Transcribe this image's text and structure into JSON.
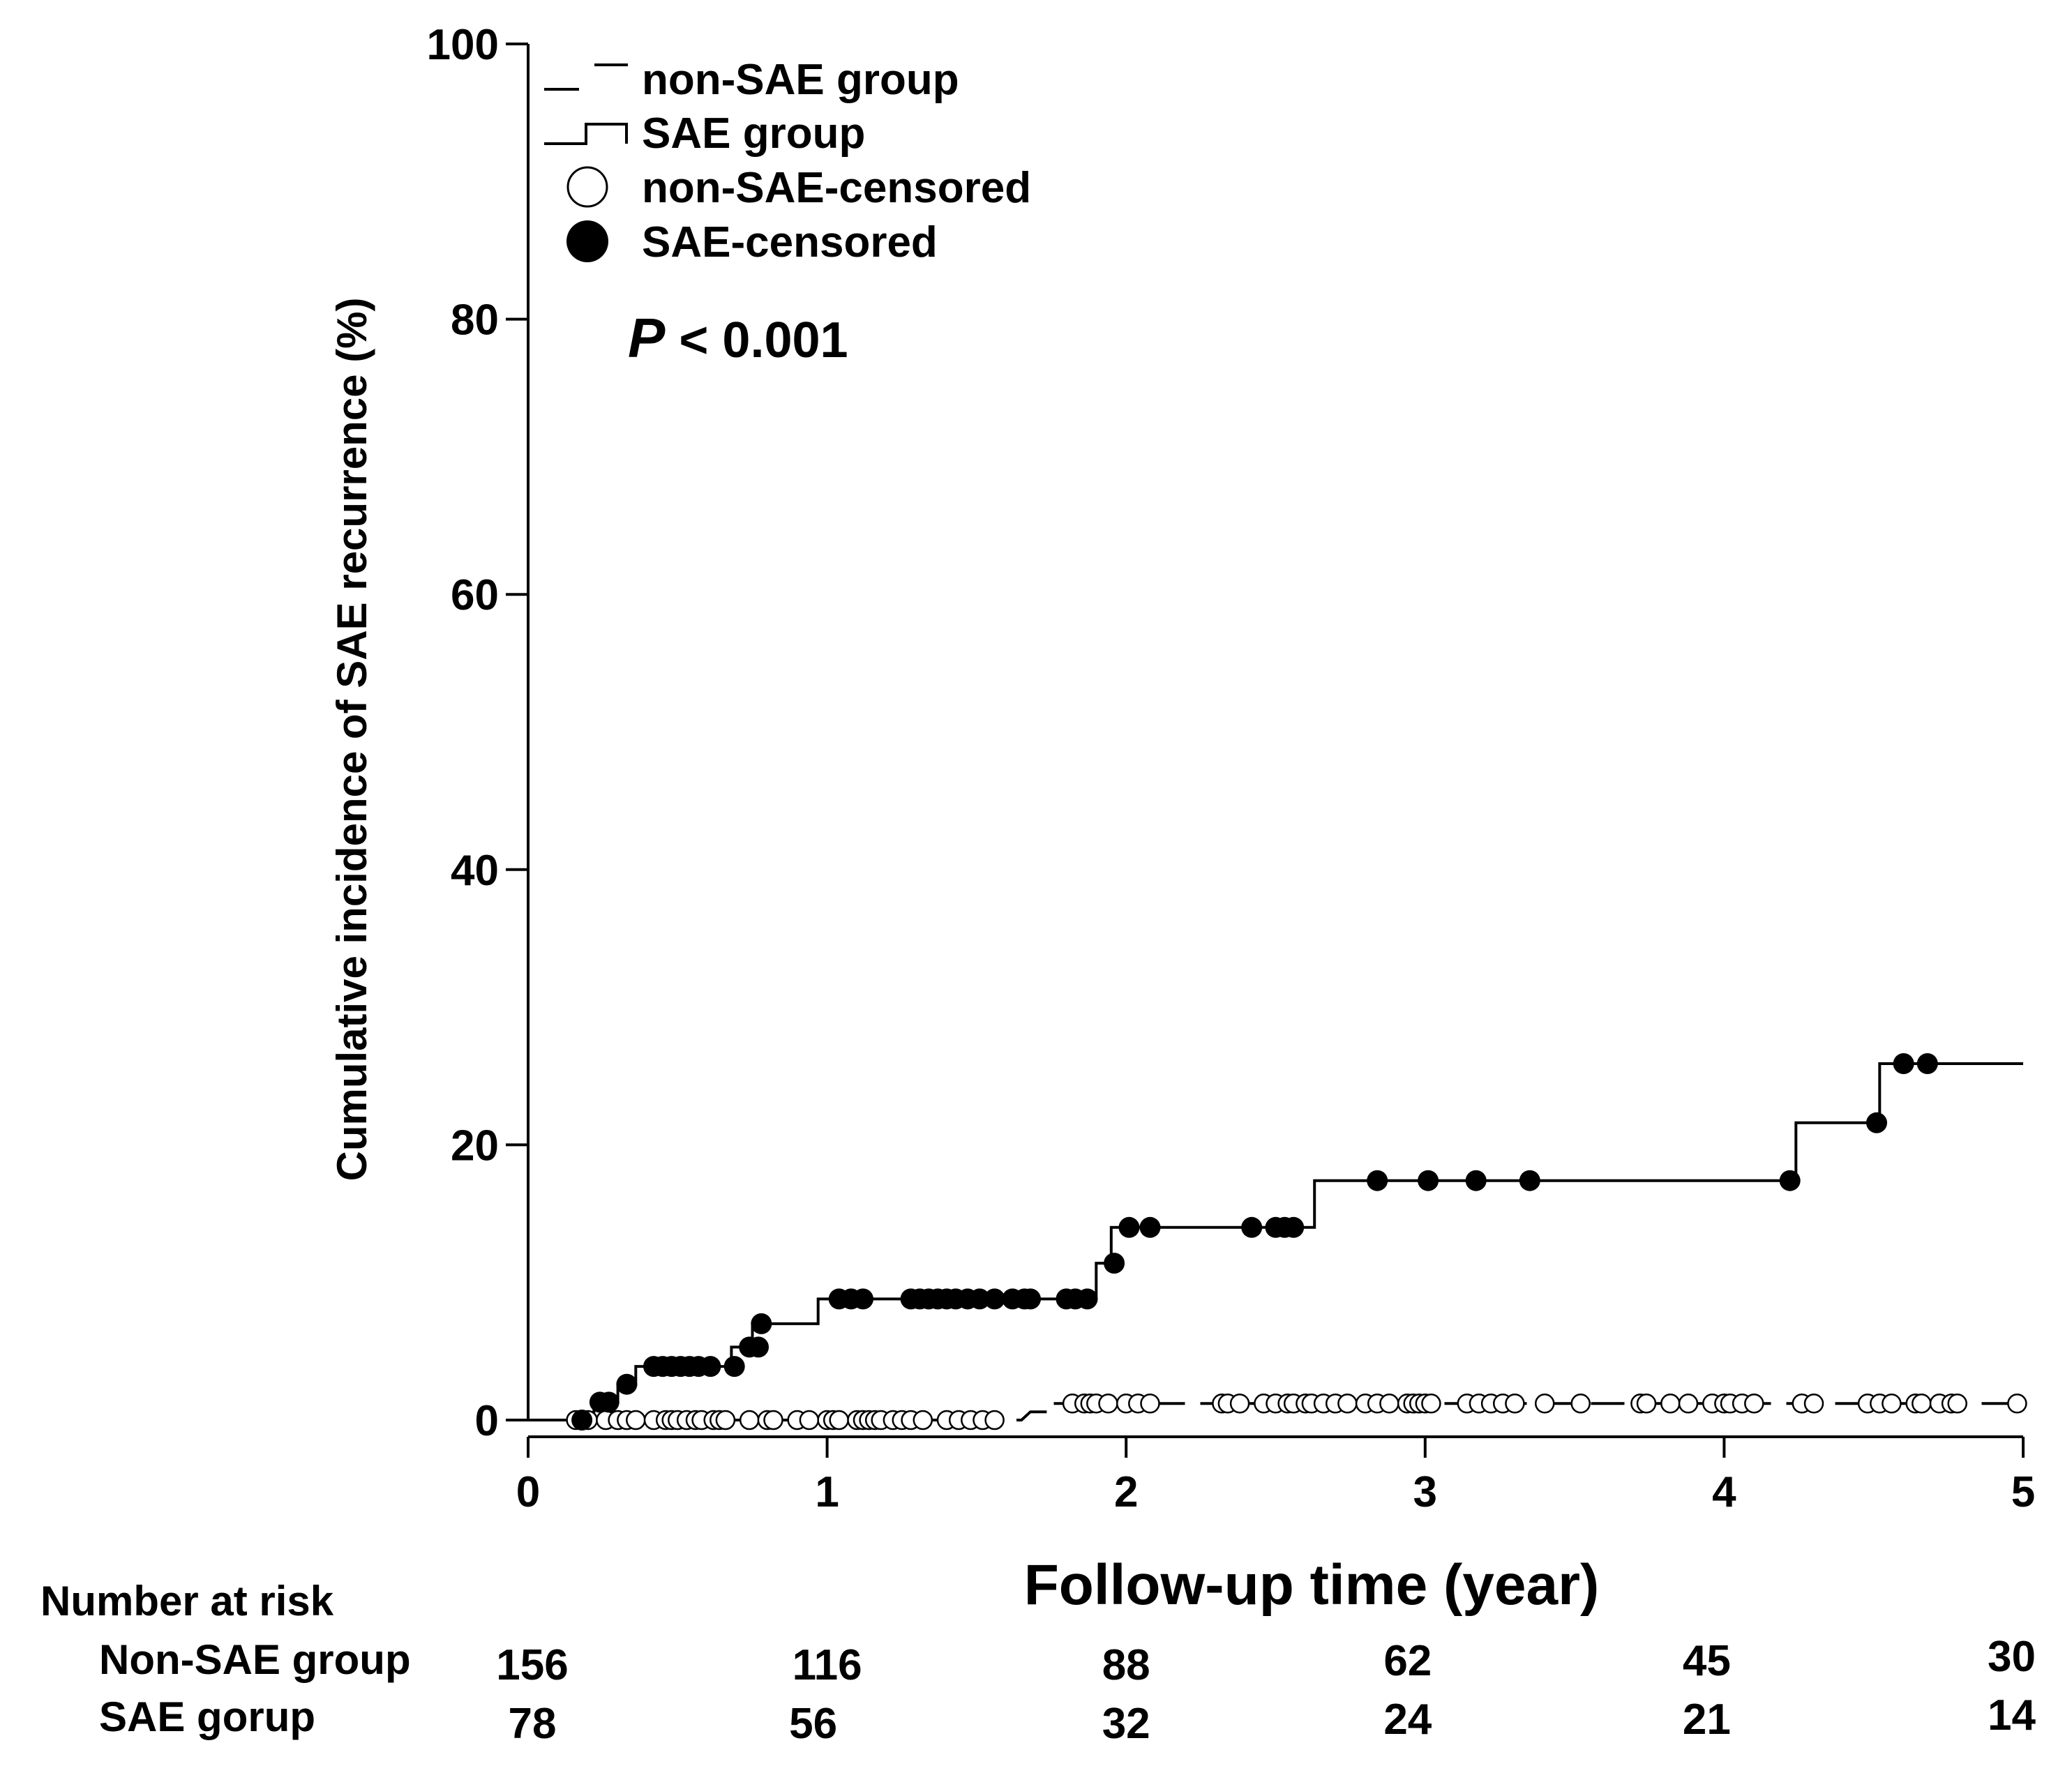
{
  "chart_data": {
    "type": "line",
    "subtype": "kaplan-meier cumulative incidence",
    "ylabel": "Cumulative incidence of SAE recurrence (%)",
    "xlabel": "Follow-up time (year)",
    "xlim": [
      0,
      5
    ],
    "ylim": [
      0,
      100
    ],
    "x_ticks": [
      "0",
      "1",
      "2",
      "3",
      "4",
      "5"
    ],
    "y_ticks": [
      "0",
      "20",
      "40",
      "60",
      "80",
      "100"
    ],
    "annotation": {
      "p_symbol": "P",
      "p_rest": " < 0.001"
    },
    "legend": {
      "position": "top-left",
      "entries": [
        "non-SAE group",
        "SAE group",
        "non-SAE-censored",
        "SAE-censored"
      ]
    },
    "series": [
      {
        "name": "non-SAE group",
        "line_style": "dashed",
        "steps": [
          [
            0,
            0
          ],
          [
            1.65,
            0
          ],
          [
            1.68,
            0.6
          ],
          [
            1.75,
            0.6
          ],
          [
            1.75,
            1.2
          ],
          [
            5,
            1.2
          ]
        ],
        "censored": [
          0.16,
          0.2,
          0.26,
          0.3,
          0.33,
          0.36,
          0.42,
          0.46,
          0.48,
          0.5,
          0.53,
          0.56,
          0.58,
          0.62,
          0.64,
          0.66,
          0.74,
          0.8,
          0.82,
          0.9,
          0.94,
          1.0,
          1.02,
          1.04,
          1.1,
          1.12,
          1.14,
          1.16,
          1.18,
          1.22,
          1.25,
          1.28,
          1.32,
          1.4,
          1.44,
          1.48,
          1.52,
          1.56,
          1.82,
          1.86,
          1.88,
          1.9,
          1.94,
          2.0,
          2.04,
          2.08,
          2.32,
          2.34,
          2.38,
          2.46,
          2.5,
          2.54,
          2.56,
          2.6,
          2.62,
          2.66,
          2.7,
          2.74,
          2.8,
          2.84,
          2.88,
          2.94,
          2.96,
          2.98,
          3.0,
          3.02,
          3.14,
          3.18,
          3.22,
          3.26,
          3.3,
          3.4,
          3.52,
          3.72,
          3.74,
          3.82,
          3.88,
          3.96,
          4.0,
          4.02,
          4.06,
          4.1,
          4.26,
          4.3,
          4.48,
          4.52,
          4.56,
          4.64,
          4.66,
          4.72,
          4.76,
          4.78,
          4.98
        ]
      },
      {
        "name": "SAE group",
        "line_style": "solid",
        "steps": [
          [
            0,
            0
          ],
          [
            0.22,
            0
          ],
          [
            0.22,
            1.3
          ],
          [
            0.3,
            1.3
          ],
          [
            0.3,
            2.6
          ],
          [
            0.36,
            2.6
          ],
          [
            0.36,
            3.9
          ],
          [
            0.68,
            3.9
          ],
          [
            0.68,
            5.3
          ],
          [
            0.75,
            5.3
          ],
          [
            0.75,
            7.0
          ],
          [
            0.97,
            7.0
          ],
          [
            0.97,
            8.8
          ],
          [
            1.9,
            8.8
          ],
          [
            1.9,
            11.4
          ],
          [
            1.95,
            11.4
          ],
          [
            1.95,
            14.0
          ],
          [
            2.63,
            14.0
          ],
          [
            2.63,
            17.4
          ],
          [
            4.24,
            17.4
          ],
          [
            4.24,
            21.6
          ],
          [
            4.52,
            21.6
          ],
          [
            4.52,
            25.9
          ],
          [
            5,
            25.9
          ]
        ],
        "censored": [
          [
            0.18,
            0
          ],
          [
            0.24,
            1.3
          ],
          [
            0.27,
            1.3
          ],
          [
            0.33,
            2.6
          ],
          [
            0.42,
            3.9
          ],
          [
            0.45,
            3.9
          ],
          [
            0.48,
            3.9
          ],
          [
            0.51,
            3.9
          ],
          [
            0.54,
            3.9
          ],
          [
            0.57,
            3.9
          ],
          [
            0.61,
            3.9
          ],
          [
            0.69,
            3.9
          ],
          [
            0.74,
            5.3
          ],
          [
            0.77,
            5.3
          ],
          [
            0.78,
            7.0
          ],
          [
            1.04,
            8.8
          ],
          [
            1.08,
            8.8
          ],
          [
            1.12,
            8.8
          ],
          [
            1.28,
            8.8
          ],
          [
            1.31,
            8.8
          ],
          [
            1.34,
            8.8
          ],
          [
            1.37,
            8.8
          ],
          [
            1.4,
            8.8
          ],
          [
            1.43,
            8.8
          ],
          [
            1.47,
            8.8
          ],
          [
            1.51,
            8.8
          ],
          [
            1.56,
            8.8
          ],
          [
            1.62,
            8.8
          ],
          [
            1.66,
            8.8
          ],
          [
            1.68,
            8.8
          ],
          [
            1.8,
            8.8
          ],
          [
            1.83,
            8.8
          ],
          [
            1.87,
            8.8
          ],
          [
            1.96,
            11.4
          ],
          [
            2.01,
            14.0
          ],
          [
            2.08,
            14.0
          ],
          [
            2.42,
            14.0
          ],
          [
            2.5,
            14.0
          ],
          [
            2.53,
            14.0
          ],
          [
            2.56,
            14.0
          ],
          [
            2.84,
            17.4
          ],
          [
            3.01,
            17.4
          ],
          [
            3.17,
            17.4
          ],
          [
            3.35,
            17.4
          ],
          [
            4.22,
            17.4
          ],
          [
            4.51,
            21.6
          ],
          [
            4.6,
            25.9
          ],
          [
            4.68,
            25.9
          ]
        ]
      }
    ],
    "risk_table": {
      "title": "Number at risk",
      "rows": [
        {
          "label": "Non-SAE group",
          "values": [
            "156",
            "116",
            "88",
            "62",
            "45",
            "30"
          ]
        },
        {
          "label": "SAE gorup",
          "values": [
            "78",
            "56",
            "32",
            "24",
            "21",
            "14"
          ]
        }
      ]
    }
  }
}
